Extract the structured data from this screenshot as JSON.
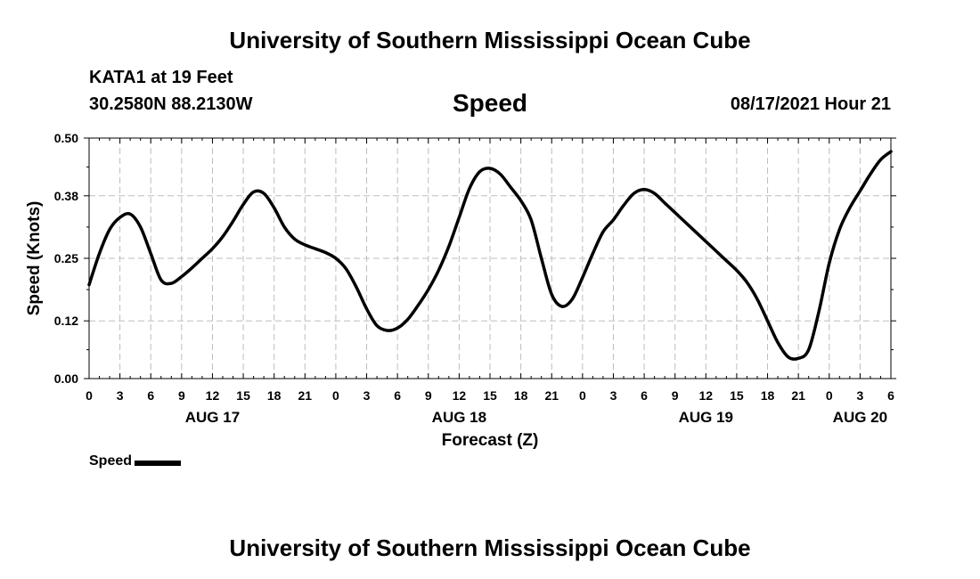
{
  "header": {
    "title_top": "University of Southern Mississippi Ocean Cube",
    "station": "KATA1 at 19 Feet",
    "coordinates": "30.2580N  88.2130W",
    "chart_title": "Speed",
    "datetime": "08/17/2021 Hour 21"
  },
  "footer": {
    "title_bottom": "University of Southern Mississippi Ocean Cube"
  },
  "legend": {
    "label": "Speed",
    "color": "#000000"
  },
  "chart_data": {
    "type": "line",
    "title": "Speed",
    "xlabel": "Forecast (Z)",
    "ylabel": "Speed (Knots)",
    "ylim": [
      0,
      0.5
    ],
    "xlim": [
      0,
      78
    ],
    "yticks": [
      0,
      0.12,
      0.25,
      0.38,
      0.5
    ],
    "ytick_labels": [
      "0.00",
      "0.12",
      "0.25",
      "0.38",
      "0.50"
    ],
    "xtick_hours": [
      0,
      3,
      6,
      9,
      12,
      15,
      18,
      21,
      24,
      27,
      30,
      33,
      36,
      39,
      42,
      45,
      48,
      51,
      54,
      57,
      60,
      63,
      66,
      69,
      72,
      75,
      78
    ],
    "xtick_labels": [
      "0",
      "3",
      "6",
      "9",
      "12",
      "15",
      "18",
      "21",
      "0",
      "3",
      "6",
      "9",
      "12",
      "15",
      "18",
      "21",
      "0",
      "3",
      "6",
      "9",
      "12",
      "15",
      "18",
      "21",
      "0",
      "3",
      "6"
    ],
    "date_labels": [
      {
        "hour": 12,
        "label": "AUG 17"
      },
      {
        "hour": 36,
        "label": "AUG 18"
      },
      {
        "hour": 60,
        "label": "AUG 19"
      },
      {
        "hour": 75,
        "label": "AUG 20"
      }
    ],
    "grid": true,
    "series": [
      {
        "name": "Speed",
        "color": "#000000",
        "x": [
          0,
          1,
          2,
          3,
          4,
          5,
          6,
          7,
          8,
          9,
          10,
          11,
          12,
          13,
          14,
          15,
          16,
          17,
          18,
          19,
          20,
          21,
          22,
          23,
          24,
          25,
          26,
          27,
          28,
          29,
          30,
          31,
          32,
          33,
          34,
          35,
          36,
          37,
          38,
          39,
          40,
          41,
          42,
          43,
          44,
          45,
          46,
          47,
          48,
          49,
          50,
          51,
          52,
          53,
          54,
          55,
          56,
          57,
          58,
          59,
          60,
          61,
          62,
          63,
          64,
          65,
          66,
          67,
          68,
          69,
          70,
          71,
          72,
          73,
          74,
          75,
          76,
          77,
          78
        ],
        "values": [
          0.195,
          0.26,
          0.31,
          0.335,
          0.342,
          0.315,
          0.26,
          0.205,
          0.198,
          0.212,
          0.23,
          0.25,
          0.27,
          0.295,
          0.327,
          0.362,
          0.388,
          0.385,
          0.355,
          0.315,
          0.29,
          0.278,
          0.27,
          0.262,
          0.25,
          0.228,
          0.19,
          0.145,
          0.11,
          0.1,
          0.105,
          0.123,
          0.152,
          0.185,
          0.225,
          0.275,
          0.335,
          0.395,
          0.43,
          0.437,
          0.425,
          0.398,
          0.37,
          0.33,
          0.25,
          0.175,
          0.15,
          0.165,
          0.21,
          0.26,
          0.305,
          0.33,
          0.36,
          0.385,
          0.393,
          0.385,
          0.365,
          0.345,
          0.325,
          0.305,
          0.285,
          0.265,
          0.245,
          0.225,
          0.2,
          0.165,
          0.12,
          0.075,
          0.045,
          0.042,
          0.06,
          0.14,
          0.24,
          0.31,
          0.355,
          0.39,
          0.425,
          0.455,
          0.472
        ]
      }
    ]
  }
}
